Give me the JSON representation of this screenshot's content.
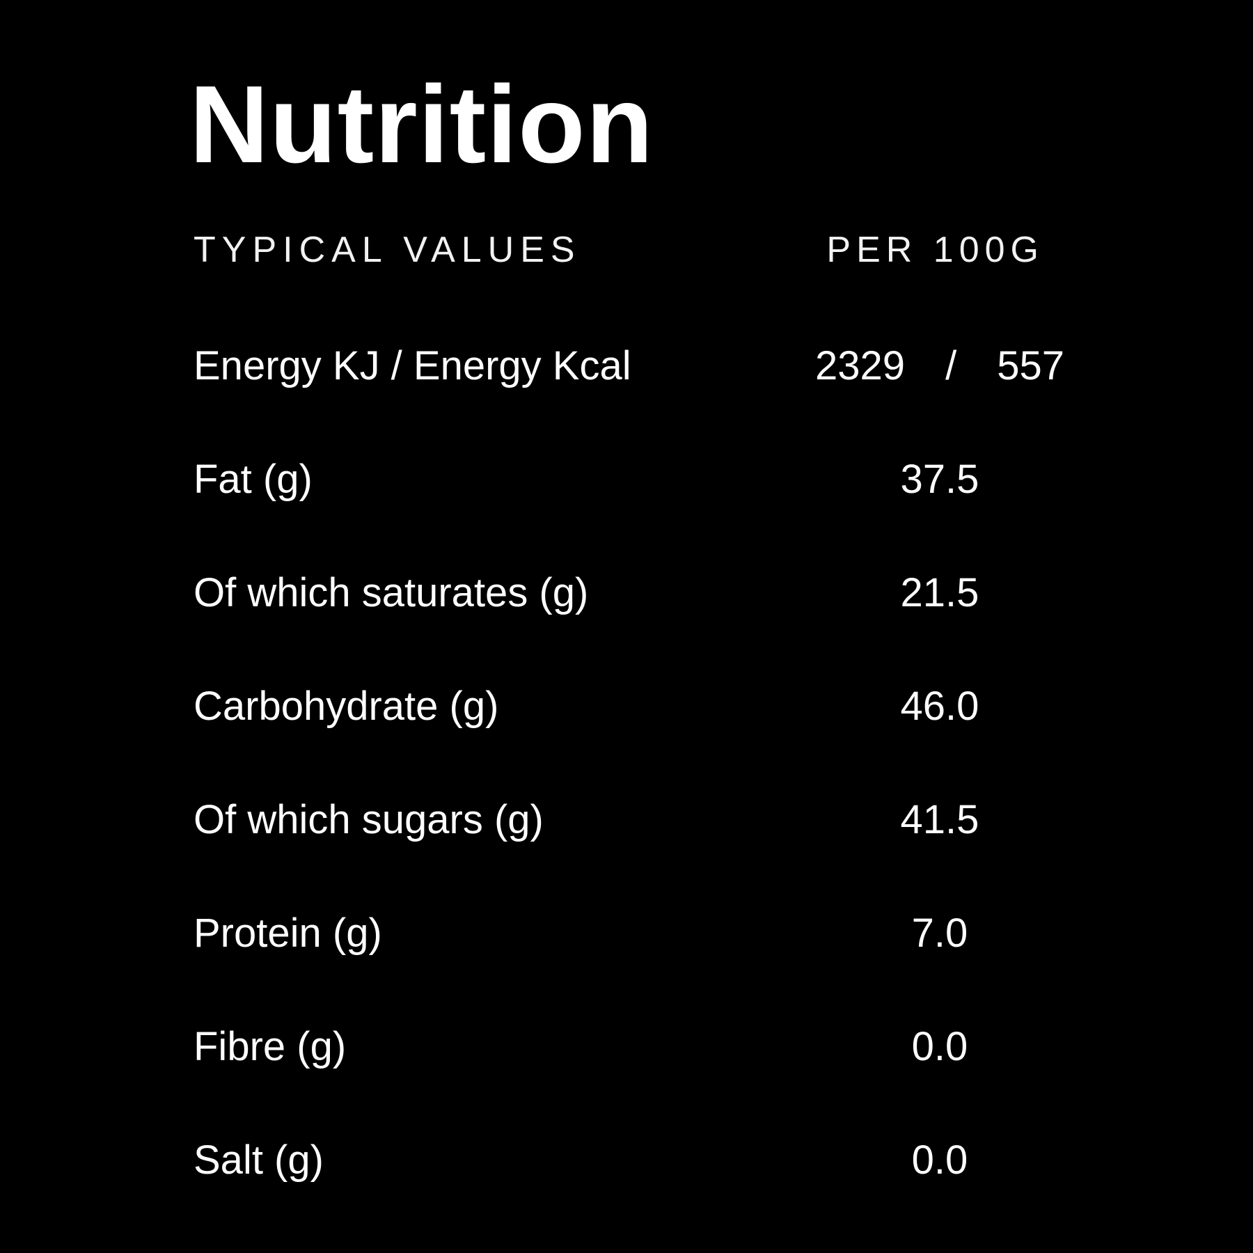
{
  "colors": {
    "background": "#000000",
    "text": "#ffffff"
  },
  "title": "Nutrition",
  "table": {
    "header": {
      "left": "TYPICAL VALUES",
      "right": "PER 100G"
    },
    "energy": {
      "label": "Energy KJ / Energy Kcal",
      "kj": "2329",
      "separator": "/",
      "kcal": "557"
    },
    "rows": [
      {
        "label": "Fat (g)",
        "value": "37.5"
      },
      {
        "label": "Of which saturates (g)",
        "value": "21.5"
      },
      {
        "label": "Carbohydrate (g)",
        "value": "46.0"
      },
      {
        "label": "Of which sugars (g)",
        "value": "41.5"
      },
      {
        "label": "Protein (g)",
        "value": "7.0"
      },
      {
        "label": "Fibre (g)",
        "value": "0.0"
      },
      {
        "label": "Salt (g)",
        "value": "0.0"
      }
    ]
  }
}
